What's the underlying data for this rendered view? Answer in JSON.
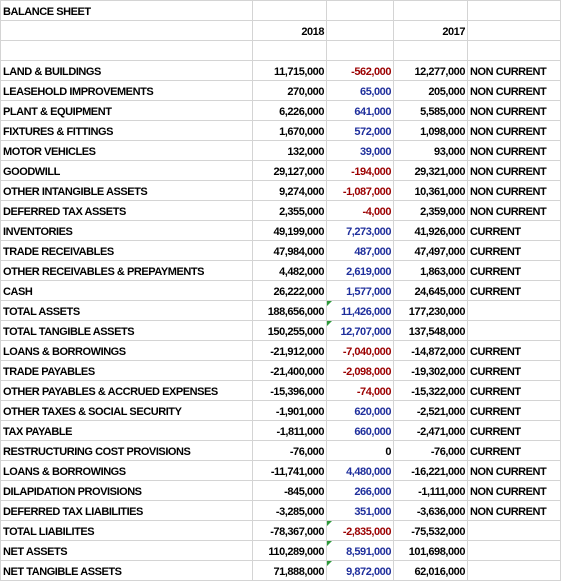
{
  "sheet": {
    "title": "BALANCE SHEET",
    "year_2018": "2018",
    "year_2017": "2017",
    "colors": {
      "negative_change": "#9b0000",
      "positive_change": "#1f2f9c",
      "gridline": "#d4d4d4",
      "error_flag": "#2e9a3a"
    },
    "rows": [
      {
        "label": "LAND & BUILDINGS",
        "y2018": "11,715,000",
        "change": "-562,000",
        "y2017": "12,277,000",
        "cls": "NON CURRENT"
      },
      {
        "label": "LEASEHOLD IMPROVEMENTS",
        "y2018": "270,000",
        "change": "65,000",
        "y2017": "205,000",
        "cls": "NON CURRENT"
      },
      {
        "label": "PLANT & EQUIPMENT",
        "y2018": "6,226,000",
        "change": "641,000",
        "y2017": "5,585,000",
        "cls": "NON CURRENT"
      },
      {
        "label": "FIXTURES & FITTINGS",
        "y2018": "1,670,000",
        "change": "572,000",
        "y2017": "1,098,000",
        "cls": "NON CURRENT"
      },
      {
        "label": "MOTOR VEHICLES",
        "y2018": "132,000",
        "change": "39,000",
        "y2017": "93,000",
        "cls": "NON CURRENT"
      },
      {
        "label": "GOODWILL",
        "y2018": "29,127,000",
        "change": "-194,000",
        "y2017": "29,321,000",
        "cls": "NON CURRENT"
      },
      {
        "label": "OTHER INTANGIBLE ASSETS",
        "y2018": "9,274,000",
        "change": "-1,087,000",
        "y2017": "10,361,000",
        "cls": "NON CURRENT"
      },
      {
        "label": "DEFERRED TAX ASSETS",
        "y2018": "2,355,000",
        "change": "-4,000",
        "y2017": "2,359,000",
        "cls": "NON CURRENT"
      },
      {
        "label": "INVENTORIES",
        "y2018": "49,199,000",
        "change": "7,273,000",
        "y2017": "41,926,000",
        "cls": "CURRENT"
      },
      {
        "label": "TRADE RECEIVABLES",
        "y2018": "47,984,000",
        "change": "487,000",
        "y2017": "47,497,000",
        "cls": "CURRENT"
      },
      {
        "label": "OTHER RECEIVABLES & PREPAYMENTS",
        "y2018": "4,482,000",
        "change": "2,619,000",
        "y2017": "1,863,000",
        "cls": "CURRENT"
      },
      {
        "label": "CASH",
        "y2018": "26,222,000",
        "change": "1,577,000",
        "y2017": "24,645,000",
        "cls": "CURRENT"
      },
      {
        "label": "TOTAL ASSETS",
        "y2018": "188,656,000",
        "change": "11,426,000",
        "y2017": "177,230,000",
        "cls": "",
        "flag": true
      },
      {
        "label": "TOTAL TANGIBLE ASSETS",
        "y2018": "150,255,000",
        "change": "12,707,000",
        "y2017": "137,548,000",
        "cls": "",
        "flag": true
      },
      {
        "label": "LOANS & BORROWINGS",
        "y2018": "-21,912,000",
        "change": "-7,040,000",
        "y2017": "-14,872,000",
        "cls": "CURRENT"
      },
      {
        "label": "TRADE PAYABLES",
        "y2018": "-21,400,000",
        "change": "-2,098,000",
        "y2017": "-19,302,000",
        "cls": "CURRENT"
      },
      {
        "label": "OTHER PAYABLES & ACCRUED EXPENSES",
        "y2018": "-15,396,000",
        "change": "-74,000",
        "y2017": "-15,322,000",
        "cls": "CURRENT"
      },
      {
        "label": "OTHER TAXES & SOCIAL SECURITY",
        "y2018": "-1,901,000",
        "change": "620,000",
        "y2017": "-2,521,000",
        "cls": "CURRENT"
      },
      {
        "label": "TAX PAYABLE",
        "y2018": "-1,811,000",
        "change": "660,000",
        "y2017": "-2,471,000",
        "cls": "CURRENT"
      },
      {
        "label": "RESTRUCTURING COST PROVISIONS",
        "y2018": "-76,000",
        "change": "0",
        "y2017": "-76,000",
        "cls": "CURRENT"
      },
      {
        "label": "LOANS & BORROWINGS",
        "y2018": "-11,741,000",
        "change": "4,480,000",
        "y2017": "-16,221,000",
        "cls": "NON CURRENT"
      },
      {
        "label": "DILAPIDATION PROVISIONS",
        "y2018": "-845,000",
        "change": "266,000",
        "y2017": "-1,111,000",
        "cls": "NON CURRENT"
      },
      {
        "label": "DEFERRED TAX LIABILITIES",
        "y2018": "-3,285,000",
        "change": "351,000",
        "y2017": "-3,636,000",
        "cls": "NON CURRENT"
      },
      {
        "label": "TOTAL LIABILITES",
        "y2018": "-78,367,000",
        "change": "-2,835,000",
        "y2017": "-75,532,000",
        "cls": "",
        "flag": true
      },
      {
        "label": "NET ASSETS",
        "y2018": "110,289,000",
        "change": "8,591,000",
        "y2017": "101,698,000",
        "cls": "",
        "flag": true
      },
      {
        "label": "NET TANGIBLE ASSETS",
        "y2018": "71,888,000",
        "change": "9,872,000",
        "y2017": "62,016,000",
        "cls": "",
        "flag": true
      }
    ]
  }
}
